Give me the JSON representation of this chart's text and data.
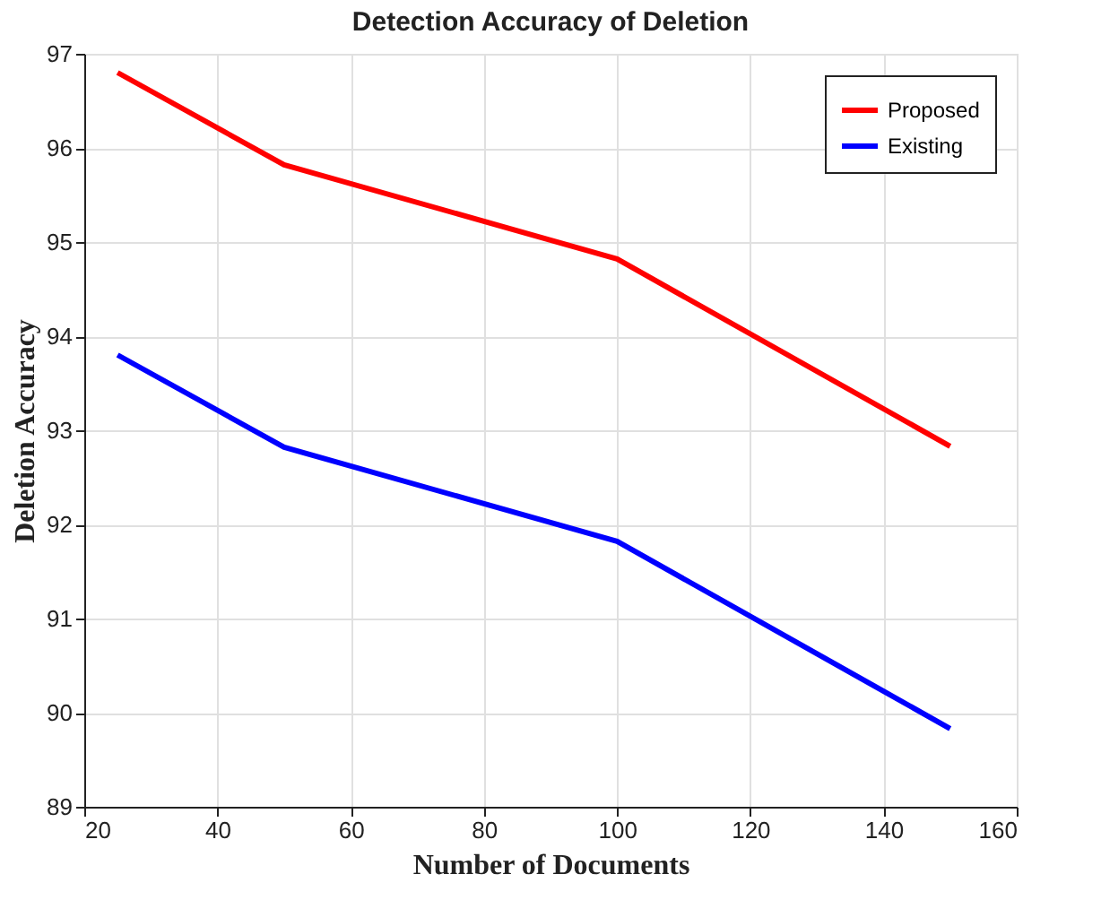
{
  "chart_data": {
    "type": "line",
    "title": "Detection Accuracy of Deletion",
    "xlabel": "Number of Documents",
    "ylabel": "Deletion Accuracy",
    "x": [
      25,
      50,
      100,
      150
    ],
    "series": [
      {
        "name": "Proposed",
        "color": "#ff0000",
        "values": [
          96.8,
          95.82,
          94.82,
          92.83
        ]
      },
      {
        "name": "Existing",
        "color": "#0000ff",
        "values": [
          93.8,
          92.82,
          91.82,
          89.83
        ]
      }
    ],
    "xlim": [
      20,
      160
    ],
    "xticks": [
      20,
      40,
      60,
      80,
      100,
      120,
      140,
      160
    ],
    "ylim": [
      89,
      97
    ],
    "yticks": [
      89,
      90,
      91,
      92,
      93,
      94,
      95,
      96,
      97
    ],
    "grid": true,
    "legend": "top right",
    "marker": "none",
    "line_style": "solid"
  }
}
